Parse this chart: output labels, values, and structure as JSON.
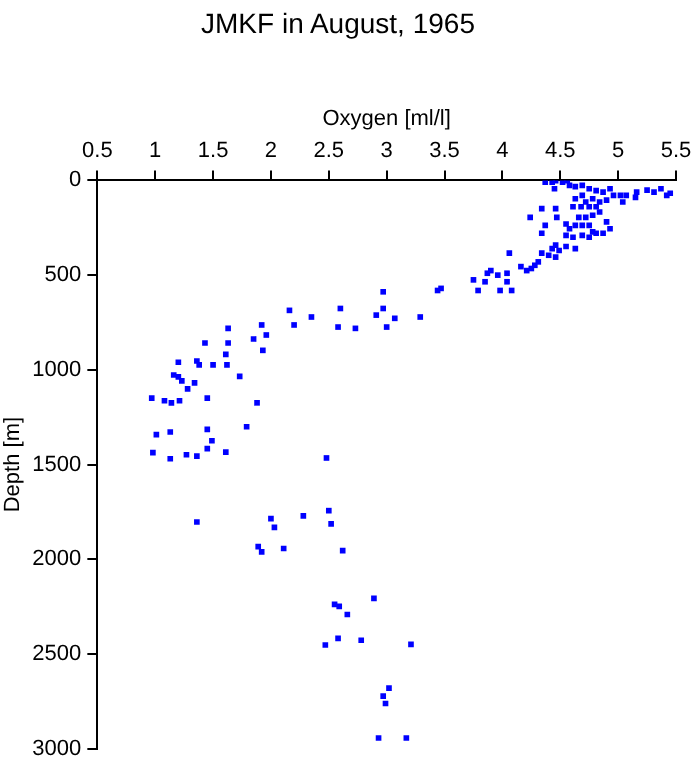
{
  "chart_data": {
    "type": "scatter",
    "title": "JMKF in August, 1965",
    "xlabel": "Oxygen [ml/l]",
    "ylabel": "Depth [m]",
    "marker": "square",
    "grid": false,
    "legend": false,
    "xlim": [
      0.5,
      5.5
    ],
    "xticks": [
      0.5,
      1,
      1.5,
      2,
      2.5,
      3,
      3.5,
      4,
      4.5,
      5,
      5.5
    ],
    "ylim": [
      3000,
      0
    ],
    "yticks": [
      0,
      500,
      1000,
      1500,
      2000,
      2500,
      3000
    ],
    "series": [
      {
        "color": "#0000ff",
        "x": [
          4.37,
          4.43,
          4.46,
          4.52,
          4.56,
          4.45,
          4.58,
          4.63,
          4.69,
          4.75,
          4.81,
          4.87,
          4.93,
          4.96,
          5.02,
          5.04,
          5.07,
          5.16,
          5.15,
          5.25,
          5.31,
          5.37,
          5.42,
          5.45,
          4.69,
          4.72,
          4.78,
          4.84,
          4.9,
          4.63,
          4.61,
          4.68,
          4.75,
          4.81,
          4.84,
          4.78,
          4.72,
          4.66,
          4.46,
          4.47,
          4.34,
          4.24,
          4.37,
          4.34,
          4.55,
          4.58,
          4.63,
          4.69,
          4.75,
          4.78,
          4.87,
          4.93,
          4.9,
          4.55,
          4.61,
          4.69,
          4.75,
          4.81,
          4.46,
          4.43,
          4.49,
          4.55,
          4.63,
          4.4,
          4.46,
          4.34,
          4.31,
          4.28,
          4.25,
          4.21,
          4.16,
          4.06,
          4.04,
          4.04,
          4.08,
          3.98,
          3.96,
          3.9,
          3.87,
          3.85,
          3.75,
          3.79,
          3.47,
          3.44,
          3.29,
          3.07,
          3.0,
          2.97,
          2.91,
          2.97,
          2.73,
          2.6,
          2.58,
          2.48,
          2.35,
          2.2,
          2.16,
          1.96,
          1.93,
          1.92,
          1.85,
          1.73,
          1.88,
          1.79,
          1.63,
          1.63,
          1.61,
          1.62,
          1.5,
          1.43,
          1.36,
          1.38,
          1.34,
          1.28,
          1.45,
          1.2,
          1.16,
          1.2,
          1.23,
          1.21,
          1.08,
          1.14,
          0.97,
          1.01,
          1.13,
          1.45,
          1.49,
          1.45,
          1.61,
          0.98,
          1.13,
          1.27,
          1.36,
          1.36,
          1.89,
          1.92,
          2.0,
          2.03,
          2.11,
          2.28,
          2.5,
          2.52,
          2.62,
          2.55,
          2.59,
          2.66,
          2.89,
          2.47,
          2.58,
          2.78,
          3.21,
          3.02,
          2.97,
          2.99,
          2.93,
          3.17
        ],
        "values": [
          10,
          10,
          2,
          10,
          2,
          44,
          26,
          33,
          26,
          44,
          54,
          62,
          44,
          79,
          79,
          114,
          79,
          62,
          90,
          51,
          62,
          44,
          79,
          68,
          79,
          114,
          97,
          114,
          104,
          97,
          139,
          139,
          139,
          139,
          167,
          184,
          195,
          195,
          149,
          195,
          149,
          195,
          237,
          279,
          230,
          255,
          237,
          237,
          237,
          272,
          279,
          255,
          219,
          290,
          300,
          290,
          300,
          279,
          342,
          360,
          370,
          349,
          360,
          395,
          405,
          384,
          430,
          448,
          465,
          476,
          455,
          384,
          490,
          535,
          581,
          581,
          500,
          476,
          490,
          535,
          525,
          581,
          570,
          581,
          721,
          728,
          774,
          676,
          711,
          588,
          781,
          676,
          774,
          1465,
          721,
          763,
          686,
          816,
          897,
          763,
          837,
          1034,
          1174,
          1300,
          781,
          858,
          918,
          974,
          974,
          858,
          953,
          974,
          1069,
          1100,
          1149,
          960,
          1027,
          1037,
          1058,
          1163,
          1163,
          1174,
          1149,
          1342,
          1328,
          1314,
          1374,
          1416,
          1434,
          1437,
          1469,
          1448,
          1455,
          1803,
          1933,
          1961,
          1785,
          1831,
          1943,
          1771,
          1743,
          1813,
          1954,
          2238,
          2248,
          2291,
          2206,
          2452,
          2417,
          2427,
          2449,
          2680,
          2722,
          2761,
          2943,
          2943
        ]
      }
    ]
  }
}
